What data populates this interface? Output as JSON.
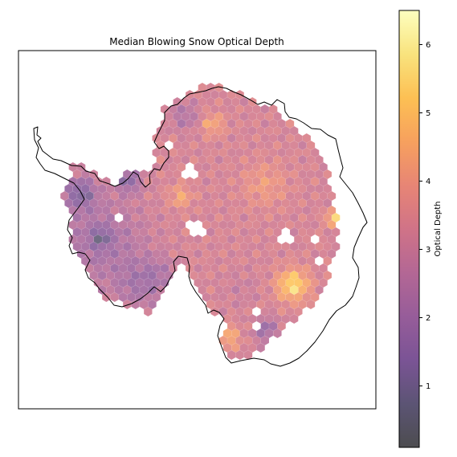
{
  "chart_data": {
    "type": "heatmap",
    "subtype": "hexbin-map",
    "title": "Median Blowing Snow Optical Depth",
    "region": "Antarctica",
    "projection": "south-polar-stereographic",
    "colormap": "inferno",
    "alpha": 0.6,
    "colorbar": {
      "label": "Optical Depth",
      "range": [
        0.1,
        6.5
      ],
      "ticks": [
        "1",
        "2",
        "3",
        "4",
        "5",
        "6"
      ],
      "placement": "right"
    },
    "xlabel": "",
    "ylabel": "",
    "grid": false,
    "value_summary": {
      "typical_interior": 3.3,
      "ross_ice_shelf": 3.0,
      "peninsula_min": 0.5,
      "east_coast_max": 5.8
    }
  }
}
